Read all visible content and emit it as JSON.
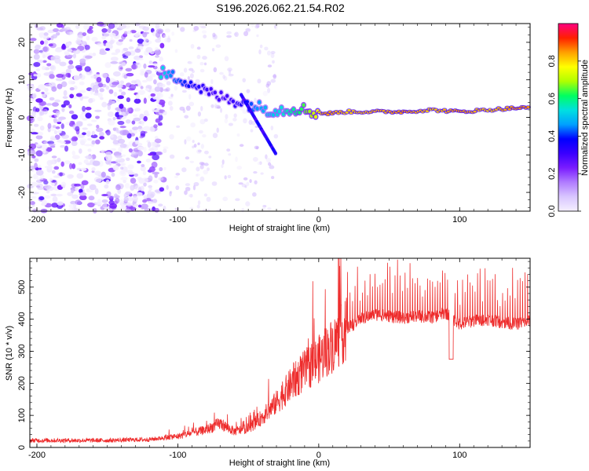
{
  "title": "S196.2026.062.21.54.R02",
  "chart_data": [
    {
      "type": "heatmap",
      "name": "spectrogram",
      "xlabel": "Height of straight line (km)",
      "ylabel": "Frequency (Hz)",
      "xlim": [
        -205,
        150
      ],
      "ylim": [
        -25,
        25
      ],
      "xticks": [
        -200,
        -100,
        0,
        100
      ],
      "yticks": [
        -20,
        -10,
        0,
        10,
        20
      ],
      "colorbar": {
        "label": "Normalized spectral amplitude",
        "range": [
          0,
          1
        ],
        "ticks": [
          0.0,
          0.2,
          0.4,
          0.6,
          0.8
        ],
        "colors": [
          "#f5f0ff",
          "#d9c6ff",
          "#b07cff",
          "#7a1cff",
          "#3a00ff",
          "#0000ff",
          "#00a0ff",
          "#00e0e0",
          "#00ff60",
          "#b0ff00",
          "#ffff00",
          "#ffa000",
          "#ff2000",
          "#ff0080"
        ]
      },
      "ridge": [
        {
          "x": -112,
          "y": 12,
          "a": 0.55
        },
        {
          "x": -105,
          "y": 11,
          "a": 0.45
        },
        {
          "x": -95,
          "y": 10,
          "a": 0.4
        },
        {
          "x": -85,
          "y": 8,
          "a": 0.35
        },
        {
          "x": -75,
          "y": 6,
          "a": 0.3
        },
        {
          "x": -65,
          "y": 5,
          "a": 0.3
        },
        {
          "x": -55,
          "y": 4,
          "a": 0.35
        },
        {
          "x": -45,
          "y": 3,
          "a": 0.45
        },
        {
          "x": -35,
          "y": 2,
          "a": 0.5
        },
        {
          "x": -25,
          "y": 2,
          "a": 0.55
        },
        {
          "x": -15,
          "y": 2.5,
          "a": 0.6
        },
        {
          "x": -5,
          "y": 1.5,
          "a": 0.7
        },
        {
          "x": 5,
          "y": 1,
          "a": 0.85
        },
        {
          "x": 20,
          "y": 1.5,
          "a": 0.8
        },
        {
          "x": 40,
          "y": 1.5,
          "a": 0.82
        },
        {
          "x": 60,
          "y": 1.5,
          "a": 0.85
        },
        {
          "x": 80,
          "y": 2,
          "a": 0.8
        },
        {
          "x": 100,
          "y": 1.5,
          "a": 0.85
        },
        {
          "x": 120,
          "y": 2,
          "a": 0.8
        },
        {
          "x": 140,
          "y": 2.5,
          "a": 0.85
        },
        {
          "x": 150,
          "y": 2.5,
          "a": 0.85
        }
      ]
    },
    {
      "type": "line",
      "name": "snr",
      "xlabel": "Height of straight line (km)",
      "ylabel": "SNR (10 * v/v)",
      "xlim": [
        -205,
        150
      ],
      "ylim": [
        0,
        590
      ],
      "xticks": [
        -200,
        -100,
        0,
        100
      ],
      "yticks": [
        0,
        100,
        200,
        300,
        400,
        500
      ],
      "color": "#ee2c2c",
      "envelope": {
        "x": [
          -205,
          -150,
          -120,
          -100,
          -90,
          -80,
          -70,
          -60,
          -50,
          -40,
          -30,
          -20,
          -10,
          0,
          10,
          20,
          30,
          40,
          50,
          60,
          70,
          80,
          90,
          100,
          110,
          120,
          130,
          140,
          150
        ],
        "y": [
          22,
          22,
          25,
          35,
          45,
          55,
          75,
          50,
          60,
          95,
          140,
          195,
          240,
          275,
          320,
          370,
          400,
          415,
          410,
          405,
          410,
          405,
          420,
          385,
          395,
          400,
          390,
          385,
          395
        ]
      }
    }
  ]
}
